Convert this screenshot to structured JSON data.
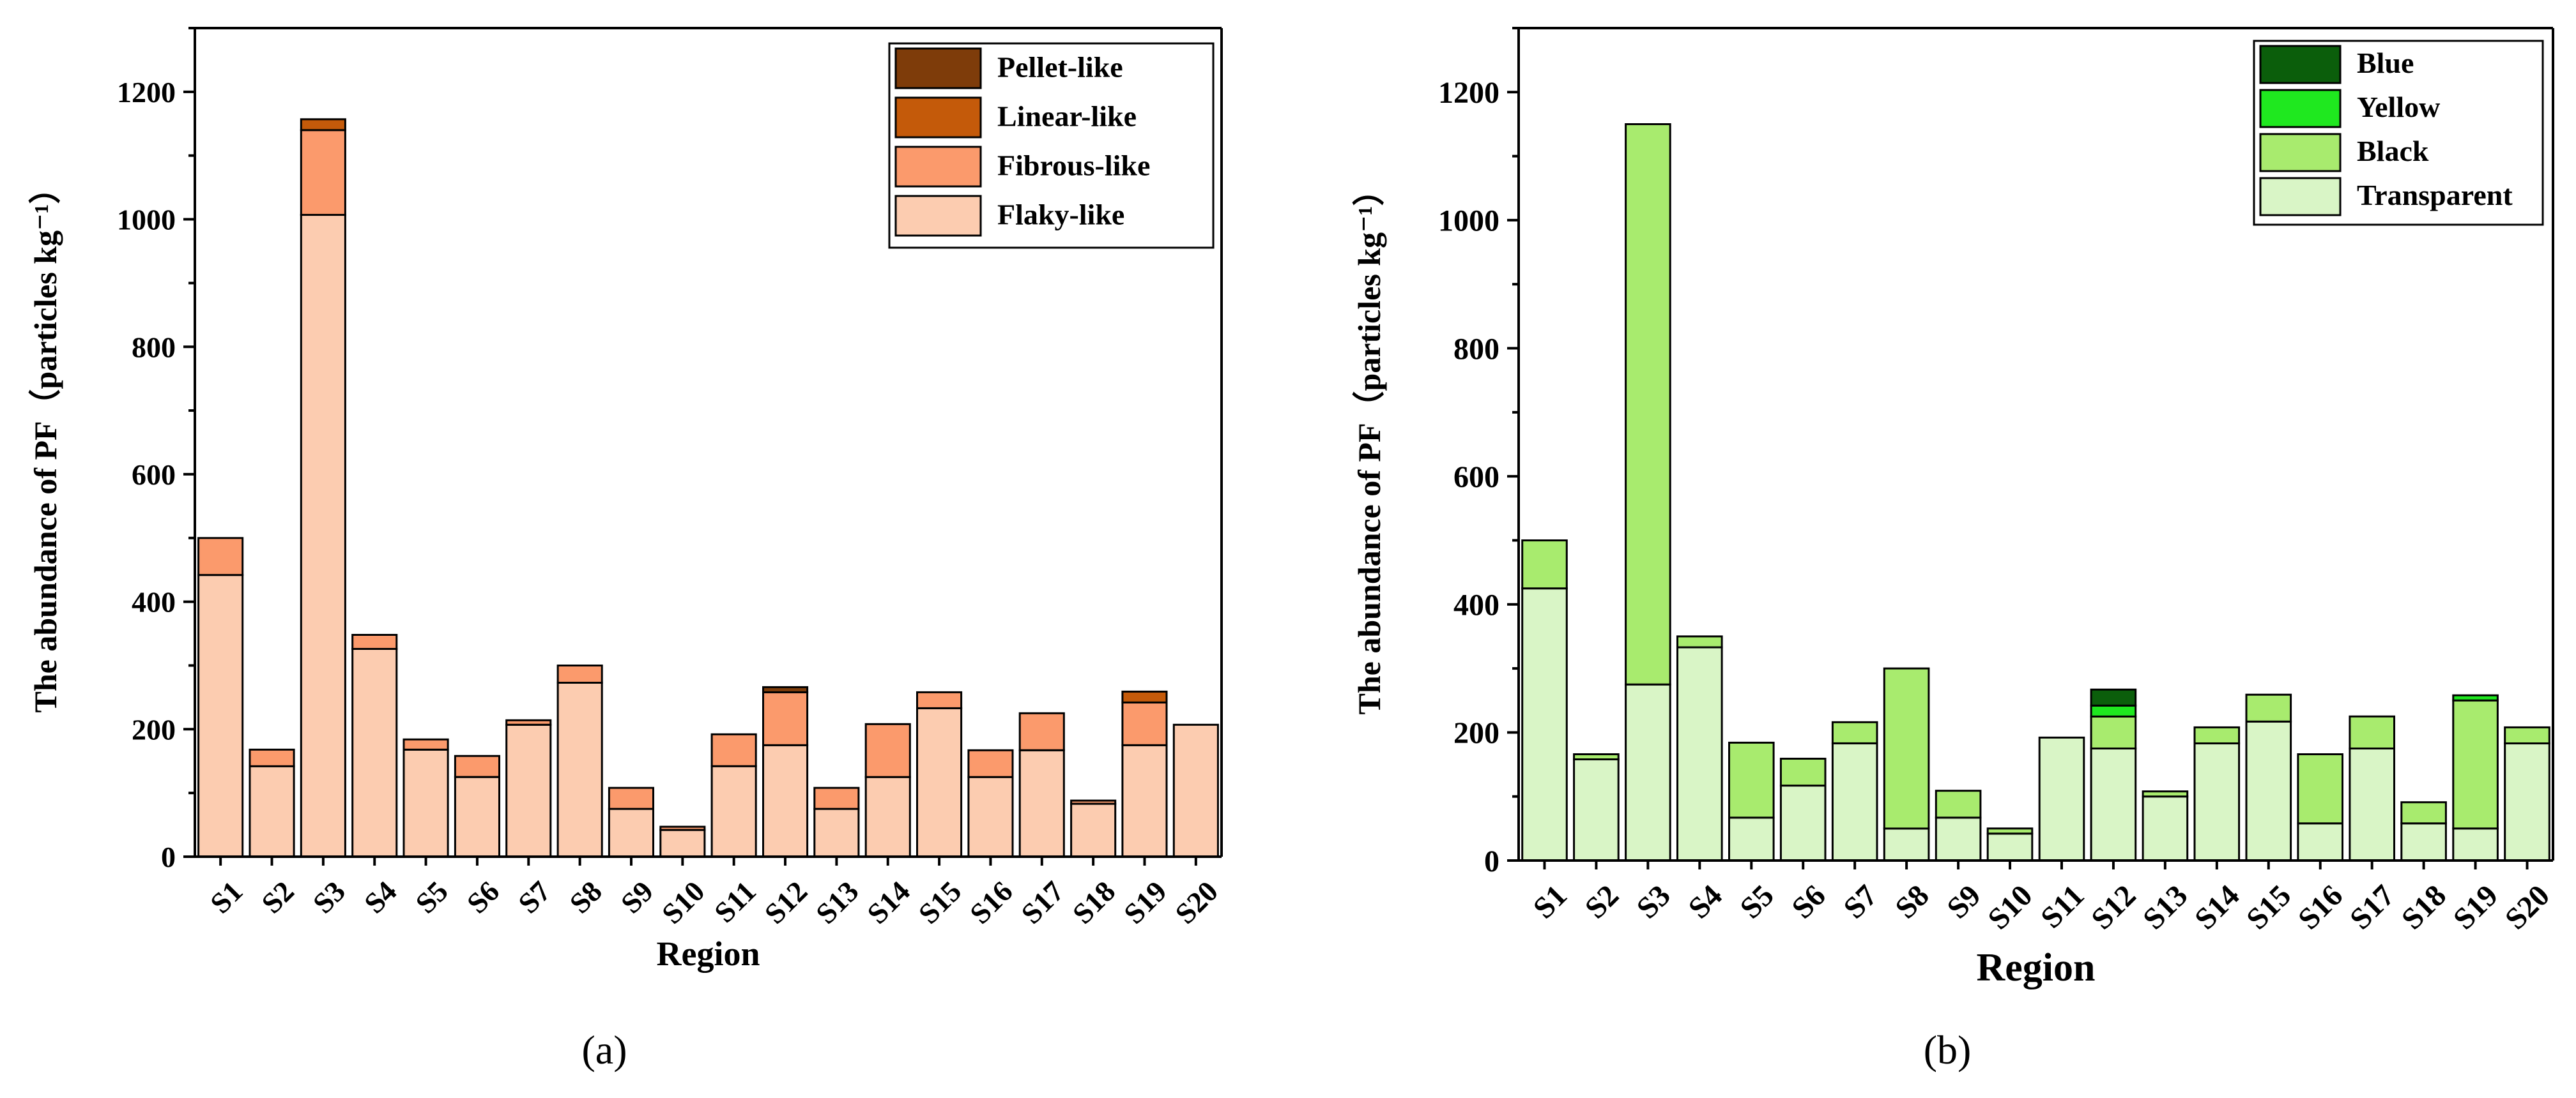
{
  "chart_data": [
    {
      "type": "bar",
      "stacked": true,
      "panel_label": "(a)",
      "xlabel": "Region",
      "ylabel": "The abundance of PF（particles kg⁻¹）",
      "ylim": [
        0,
        1300
      ],
      "yticks": [
        0,
        200,
        400,
        600,
        800,
        1000,
        1200
      ],
      "legend_position": "top-right",
      "categories": [
        "S1",
        "S2",
        "S3",
        "S4",
        "S5",
        "S6",
        "S7",
        "S8",
        "S9",
        "S10",
        "S11",
        "S12",
        "S13",
        "S14",
        "S15",
        "S16",
        "S17",
        "S18",
        "S19",
        "S20"
      ],
      "series": [
        {
          "name": "Flaky-like",
          "color": "#FCCCB0",
          "values": [
            442,
            142,
            1007,
            326,
            168,
            125,
            207,
            273,
            75,
            42,
            142,
            175,
            75,
            125,
            233,
            125,
            167,
            83,
            175,
            207
          ]
        },
        {
          "name": "Fibrous-like",
          "color": "#FB9A6C",
          "values": [
            58,
            26,
            133,
            22,
            16,
            33,
            7,
            27,
            33,
            5,
            50,
            83,
            33,
            83,
            25,
            42,
            58,
            5,
            67,
            0
          ]
        },
        {
          "name": "Linear-like",
          "color": "#C45A0A",
          "values": [
            0,
            0,
            17,
            0,
            0,
            0,
            0,
            0,
            0,
            0,
            0,
            0,
            0,
            0,
            0,
            0,
            0,
            0,
            17,
            0
          ]
        },
        {
          "name": "Pellet-like",
          "color": "#7E3C0A",
          "values": [
            0,
            0,
            0,
            0,
            0,
            0,
            0,
            0,
            0,
            0,
            0,
            8,
            0,
            0,
            0,
            0,
            0,
            0,
            0,
            0
          ]
        }
      ]
    },
    {
      "type": "bar",
      "stacked": true,
      "panel_label": "(b)",
      "xlabel": "Region",
      "ylabel": "The abundance of PF（particles kg⁻¹）",
      "ylim": [
        0,
        1300
      ],
      "yticks": [
        0,
        200,
        400,
        600,
        800,
        1000,
        1200
      ],
      "legend_position": "top-right",
      "categories": [
        "S1",
        "S2",
        "S3",
        "S4",
        "S5",
        "S6",
        "S7",
        "S8",
        "S9",
        "S10",
        "S11",
        "S12",
        "S13",
        "S14",
        "S15",
        "S16",
        "S17",
        "S18",
        "S19",
        "S20"
      ],
      "series": [
        {
          "name": "Transparent",
          "color": "#D9F5C6",
          "values": [
            425,
            158,
            275,
            333,
            67,
            117,
            183,
            50,
            67,
            42,
            192,
            175,
            100,
            183,
            217,
            58,
            175,
            58,
            50,
            183
          ]
        },
        {
          "name": "Black",
          "color": "#A8EB6E",
          "values": [
            75,
            8,
            875,
            17,
            117,
            42,
            33,
            250,
            42,
            8,
            0,
            50,
            8,
            25,
            42,
            108,
            50,
            33,
            200,
            25
          ]
        },
        {
          "name": "Yellow",
          "color": "#1FE81F",
          "values": [
            0,
            0,
            0,
            0,
            0,
            0,
            0,
            0,
            0,
            0,
            0,
            17,
            0,
            0,
            0,
            0,
            0,
            0,
            8,
            0
          ]
        },
        {
          "name": "Blue",
          "color": "#0B5E0B",
          "values": [
            0,
            0,
            0,
            0,
            0,
            0,
            0,
            0,
            0,
            0,
            0,
            25,
            0,
            0,
            0,
            0,
            0,
            0,
            0,
            0
          ]
        }
      ]
    }
  ]
}
